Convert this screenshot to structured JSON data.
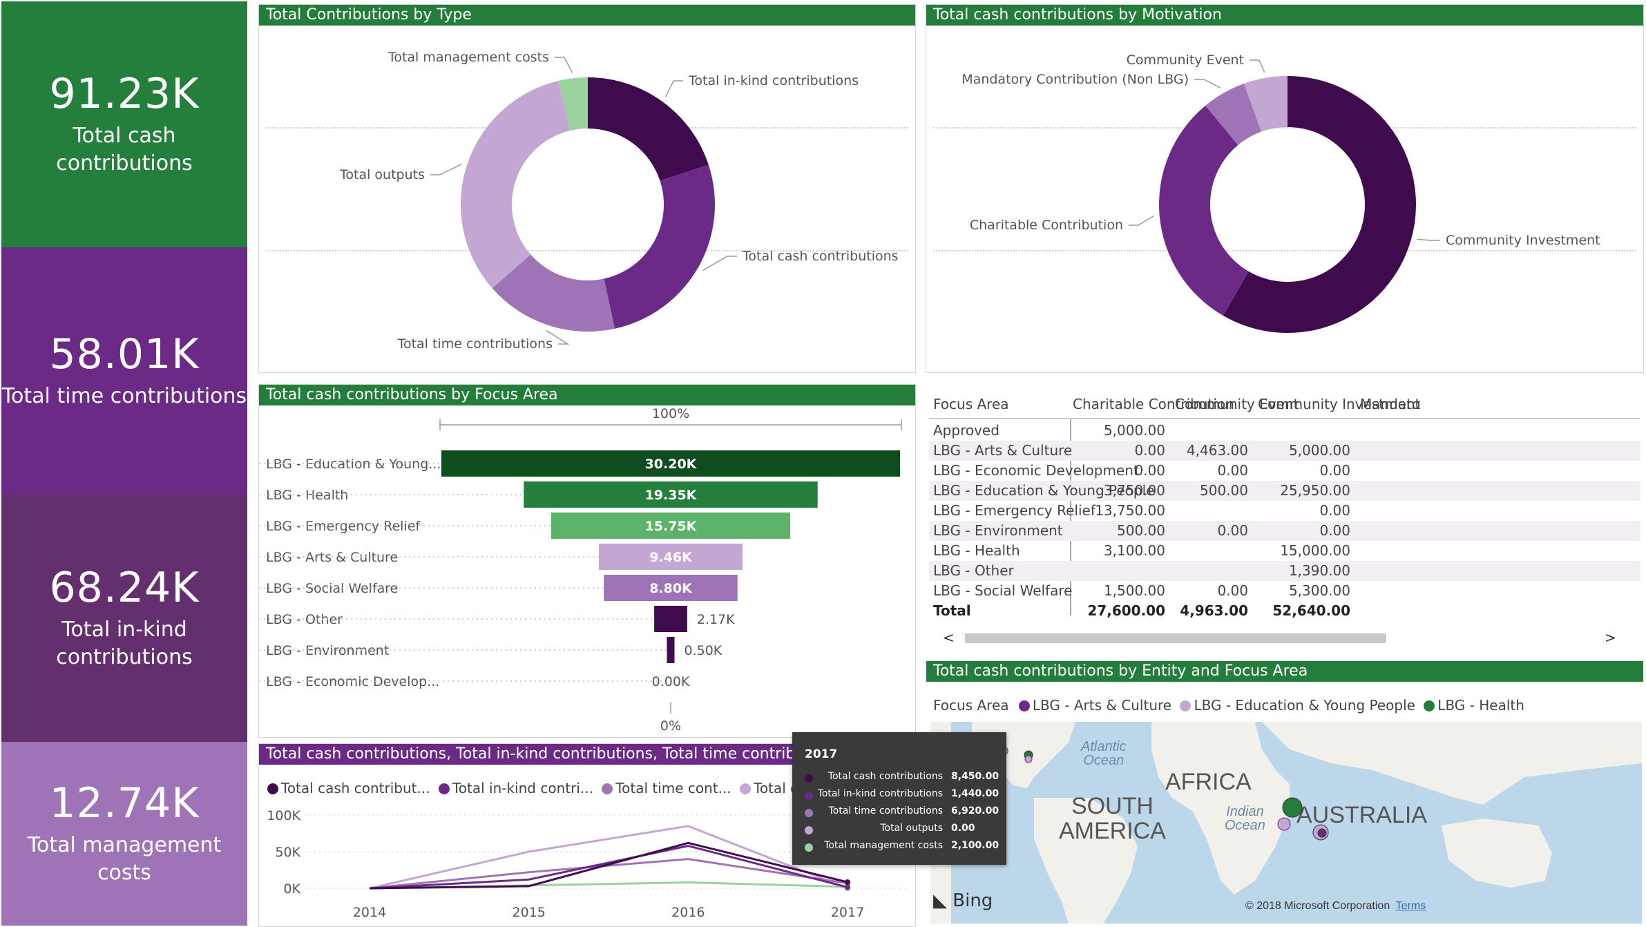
{
  "colors": {
    "green_title": "#247d3a",
    "kpi_green": "#237f3b",
    "purple_dark": "#3f0b4c",
    "purple": "#6a2a86",
    "purple_mid": "#642f6e",
    "lilac": "#9f74b6",
    "lilac_light": "#c3a6d2",
    "green_light": "#9ad19f"
  },
  "kpis": [
    {
      "value": "91.23K",
      "label": "Total cash contributions"
    },
    {
      "value": "58.01K",
      "label": "Total time contributions"
    },
    {
      "value": "68.24K",
      "label": "Total in-kind contributions"
    },
    {
      "value": "12.74K",
      "label": "Total management costs"
    }
  ],
  "panels": {
    "by_type_title": "Total Contributions by Type",
    "by_motivation_title": "Total cash contributions by Motivation",
    "focus_area_title": "Total cash contributions by Focus Area",
    "line_title": "Total cash contributions, Total in-kind contributions, Total time contributions, Total outputs and Total management costs by Year",
    "map_title": "Total cash contributions by Entity and Focus Area"
  },
  "chart_data": [
    {
      "type": "pie",
      "title": "Total Contributions by Type",
      "labels": [
        "Total in-kind contributions",
        "Total cash contributions",
        "Total time contributions",
        "Total outputs",
        "Total management costs"
      ],
      "values": [
        68.24,
        91.23,
        58.01,
        112.0,
        12.74
      ]
    },
    {
      "type": "pie",
      "title": "Total cash contributions by Motivation",
      "labels": [
        "Community Investment",
        "Charitable Contribution",
        "Mandatory Contribution (Non LBG)",
        "Community Event"
      ],
      "values": [
        52.64,
        27.6,
        5.0,
        4.96
      ]
    },
    {
      "type": "bar",
      "title": "Total cash contributions by Focus Area",
      "top_label": "100%",
      "bottom_label": "0%",
      "categories": [
        "LBG - Education & Young...",
        "LBG - Health",
        "LBG - Emergency Relief",
        "LBG - Arts & Culture",
        "LBG - Social Welfare",
        "LBG - Other",
        "LBG - Environment",
        "LBG - Economic Develop..."
      ],
      "values": [
        30.2,
        19.35,
        15.75,
        9.46,
        8.8,
        2.17,
        0.5,
        0.0
      ],
      "value_labels": [
        "30.20K",
        "19.35K",
        "15.75K",
        "9.46K",
        "8.80K",
        "2.17K",
        "0.50K",
        "0.00K"
      ]
    },
    {
      "type": "line",
      "x": [
        "2014",
        "2015",
        "2016",
        "2017"
      ],
      "ylim": [
        0,
        100
      ],
      "yticks": [
        "100K",
        "50K",
        "0K"
      ],
      "legend": [
        "Total cash contribut...",
        "Total in-kind contri...",
        "Total time cont...",
        "Total outputs"
      ],
      "series": [
        {
          "name": "Total cash contributions",
          "values": [
            0,
            3,
            62,
            8.45
          ]
        },
        {
          "name": "Total in-kind contributions",
          "values": [
            0,
            12,
            58,
            1.44
          ]
        },
        {
          "name": "Total time contributions",
          "values": [
            0,
            22,
            40,
            6.92
          ]
        },
        {
          "name": "Total outputs",
          "values": [
            0,
            50,
            85,
            0
          ]
        },
        {
          "name": "Total management costs",
          "values": [
            0,
            4,
            8,
            2.1
          ]
        }
      ]
    }
  ],
  "table": {
    "headers": [
      "Focus Area",
      "Charitable Contribution",
      "Community Event",
      "Community Investment",
      "Mandato"
    ],
    "rows": [
      [
        "Approved",
        "5,000.00",
        "",
        ""
      ],
      [
        "LBG - Arts & Culture",
        "0.00",
        "4,463.00",
        "5,000.00"
      ],
      [
        "LBG - Economic Development",
        "0.00",
        "0.00",
        "0.00"
      ],
      [
        "LBG - Education & Young People",
        "3,750.00",
        "500.00",
        "25,950.00"
      ],
      [
        "LBG - Emergency Relief",
        "13,750.00",
        "",
        "0.00"
      ],
      [
        "LBG - Environment",
        "500.00",
        "0.00",
        "0.00"
      ],
      [
        "LBG - Health",
        "3,100.00",
        "",
        "15,000.00"
      ],
      [
        "LBG - Other",
        "",
        "",
        "1,390.00"
      ],
      [
        "LBG - Social Welfare",
        "1,500.00",
        "0.00",
        "5,300.00"
      ]
    ],
    "total": [
      "Total",
      "27,600.00",
      "4,963.00",
      "52,640.00"
    ],
    "scroll_left": "<",
    "scroll_right": ">"
  },
  "tooltip": {
    "year": "2017",
    "items": [
      {
        "label": "Total cash contributions",
        "value": "8,450.00"
      },
      {
        "label": "Total in-kind contributions",
        "value": "1,440.00"
      },
      {
        "label": "Total time contributions",
        "value": "6,920.00"
      },
      {
        "label": "Total outputs",
        "value": "0.00"
      },
      {
        "label": "Total management costs",
        "value": "2,100.00"
      }
    ]
  },
  "map": {
    "legend_title": "Focus Area",
    "legend": [
      "LBG - Arts & Culture",
      "LBG - Education & Young People",
      "LBG - Health"
    ],
    "labels": {
      "atlantic": "Atlantic\nOcean",
      "africa": "AFRICA",
      "south_america": "SOUTH\nAMERICA",
      "indian": "Indian\nOcean",
      "australia": "AUSTRALIA"
    },
    "bing": "Bing",
    "copyright": "© 2018 Microsoft Corporation",
    "terms": "Terms"
  }
}
